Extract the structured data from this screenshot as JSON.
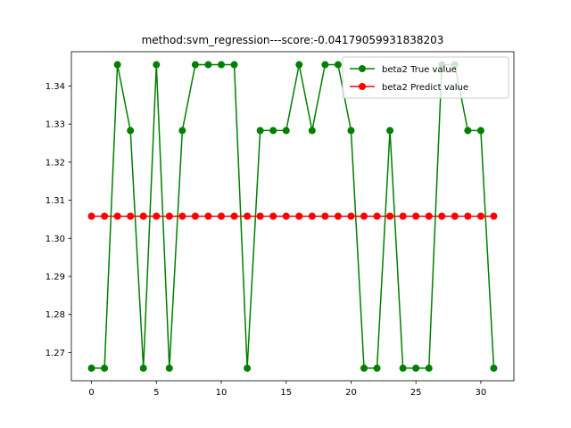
{
  "chart_data": {
    "type": "line",
    "title": "method:svm_regression---score:-0.04179059931838203",
    "xlabel": "",
    "ylabel": "",
    "xlim": [
      -1.55,
      32.55
    ],
    "ylim": [
      1.2626,
      1.349
    ],
    "x_ticks": [
      0,
      5,
      10,
      15,
      20,
      25,
      30
    ],
    "y_ticks": [
      1.27,
      1.28,
      1.29,
      1.3,
      1.31,
      1.32,
      1.33,
      1.34
    ],
    "y_tick_labels": [
      "1.27",
      "1.28",
      "1.29",
      "1.30",
      "1.31",
      "1.32",
      "1.33",
      "1.34"
    ],
    "grid": false,
    "legend_position": "upper right",
    "x": [
      0,
      1,
      2,
      3,
      4,
      5,
      6,
      7,
      8,
      9,
      10,
      11,
      12,
      13,
      14,
      15,
      16,
      17,
      18,
      19,
      20,
      21,
      22,
      23,
      24,
      25,
      26,
      27,
      28,
      29,
      30,
      31
    ],
    "series": [
      {
        "name": "beta2 True value",
        "color": "#008000",
        "marker": "circle",
        "values": [
          1.2659,
          1.2659,
          1.3456,
          1.3283,
          1.2659,
          1.3456,
          1.2659,
          1.3283,
          1.3456,
          1.3456,
          1.3456,
          1.3456,
          1.2659,
          1.3283,
          1.3283,
          1.3283,
          1.3456,
          1.3283,
          1.3456,
          1.3456,
          1.3283,
          1.2659,
          1.2659,
          1.3283,
          1.2659,
          1.2659,
          1.2659,
          1.3456,
          1.3456,
          1.3283,
          1.3283,
          1.2659
        ]
      },
      {
        "name": "beta2 Predict value",
        "color": "#ff0000",
        "marker": "circle",
        "values": [
          1.3058,
          1.3058,
          1.3058,
          1.3058,
          1.3058,
          1.3058,
          1.3058,
          1.3058,
          1.3058,
          1.3058,
          1.3058,
          1.3058,
          1.3058,
          1.3058,
          1.3058,
          1.3058,
          1.3058,
          1.3058,
          1.3058,
          1.3058,
          1.3058,
          1.3058,
          1.3058,
          1.3058,
          1.3058,
          1.3058,
          1.3058,
          1.3058,
          1.3058,
          1.3058,
          1.3058,
          1.3058
        ]
      }
    ]
  }
}
